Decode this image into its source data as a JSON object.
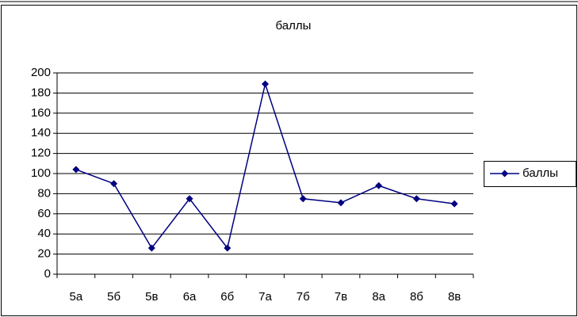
{
  "chart_data": {
    "type": "line",
    "title": "баллы",
    "categories": [
      "5а",
      "5б",
      "5в",
      "6а",
      "6б",
      "7а",
      "7б",
      "7в",
      "8а",
      "8б",
      "8в"
    ],
    "series": [
      {
        "name": "баллы",
        "color": "#000080",
        "values": [
          104,
          90,
          26,
          75,
          26,
          189,
          75,
          71,
          88,
          75,
          70
        ]
      }
    ],
    "ylim": [
      0,
      200
    ],
    "yticks": [
      0,
      20,
      40,
      60,
      80,
      100,
      120,
      140,
      160,
      180,
      200
    ],
    "grid": true,
    "legend": "right"
  }
}
